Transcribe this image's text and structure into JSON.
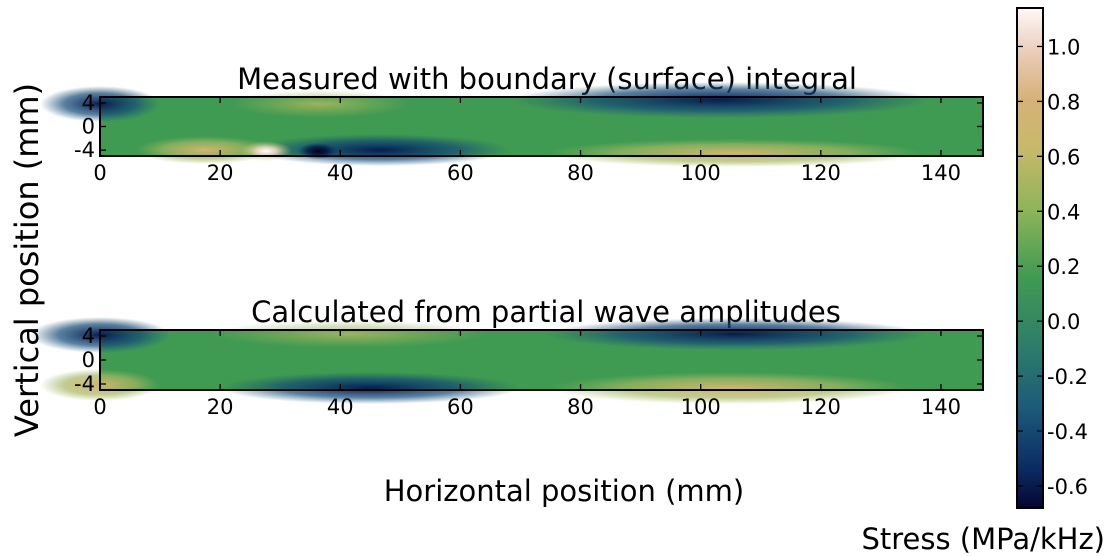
{
  "figure": {
    "ylabel": "Vertical position (mm)",
    "xlabel": "Horizontal position (mm)"
  },
  "colorbar": {
    "label": "Stress (MPa/kHz)",
    "range": [
      -0.68,
      1.14
    ],
    "ticks": [
      1.0,
      0.8,
      0.6,
      0.4,
      0.2,
      0.0,
      -0.2,
      -0.4,
      -0.6
    ],
    "tick_labels": [
      "1.0",
      "0.8",
      "0.6",
      "0.4",
      "0.2",
      "0.0",
      "-0.2",
      "-0.4",
      "-0.6"
    ],
    "colormap_stops": [
      "#050530",
      "#0b2c63",
      "#1d5a79",
      "#2e7f6a",
      "#3f9a52",
      "#8fb55a",
      "#c8b86a",
      "#d7b27a",
      "#e8c8b0",
      "#fff8f8"
    ]
  },
  "chart_data": [
    {
      "type": "heatmap",
      "title": "Measured with boundary (surface) integral",
      "xlim": [
        0,
        147
      ],
      "ylim": [
        -5,
        5
      ],
      "xticks": [
        0,
        20,
        40,
        60,
        80,
        100,
        120,
        140
      ],
      "xtick_labels": [
        "0",
        "20",
        "40",
        "60",
        "80",
        "100",
        "120",
        "140"
      ],
      "yticks": [
        4,
        0,
        -4
      ],
      "ytick_labels": [
        "4",
        "0",
        "-4"
      ],
      "features": [
        {
          "x": 27,
          "y": -4.5,
          "value": 1.1
        },
        {
          "x": 37,
          "y": -4.5,
          "value": -0.7
        },
        {
          "x": 46,
          "y": -4.5,
          "value": -0.6
        },
        {
          "x": 3,
          "y": 4.5,
          "value": -0.55
        },
        {
          "x": 108,
          "y": 4.5,
          "value": -0.6
        },
        {
          "x": 106,
          "y": -4.5,
          "value": 0.6
        }
      ]
    },
    {
      "type": "heatmap",
      "title": "Calculated from partial wave amplitudes",
      "xlim": [
        0,
        147
      ],
      "ylim": [
        -5,
        5
      ],
      "xticks": [
        0,
        20,
        40,
        60,
        80,
        100,
        120,
        140
      ],
      "xtick_labels": [
        "0",
        "20",
        "40",
        "60",
        "80",
        "100",
        "120",
        "140"
      ],
      "yticks": [
        4,
        0,
        -4
      ],
      "ytick_labels": [
        "4",
        "0",
        "-4"
      ],
      "features": [
        {
          "x": 4,
          "y": 4.5,
          "value": -0.6
        },
        {
          "x": 3,
          "y": -4.5,
          "value": 0.65
        },
        {
          "x": 43,
          "y": -4.5,
          "value": -0.65
        },
        {
          "x": 45,
          "y": 4.5,
          "value": 0.55
        },
        {
          "x": 107,
          "y": 4.5,
          "value": -0.65
        },
        {
          "x": 104,
          "y": -4.5,
          "value": 0.6
        }
      ]
    }
  ]
}
